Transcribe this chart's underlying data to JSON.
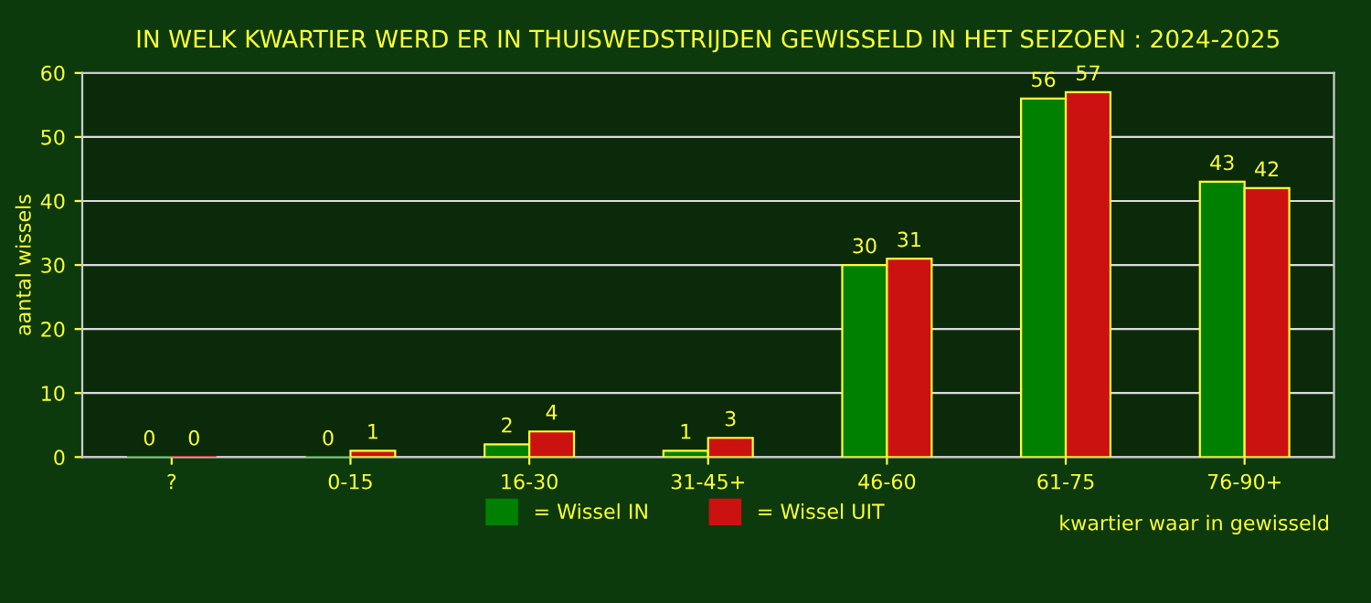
{
  "chart_data": {
    "type": "bar",
    "title": "IN WELK KWARTIER WERD ER IN THUISWEDSTRIJDEN GEWISSELD IN HET SEIZOEN : 2024-2025",
    "xlabel": "kwartier waar in gewisseld",
    "ylabel": "aantal wissels",
    "categories": [
      "?",
      "0-15",
      "16-30",
      "31-45+",
      "46-60",
      "61-75",
      "76-90+"
    ],
    "series": [
      {
        "name": "= Wissel IN",
        "color": "#008000",
        "values": [
          0,
          0,
          2,
          1,
          30,
          56,
          43
        ]
      },
      {
        "name": "= Wissel UIT",
        "color": "#cc1111",
        "values": [
          0,
          1,
          4,
          3,
          31,
          57,
          42
        ]
      }
    ],
    "ylim": [
      0,
      60
    ],
    "yticks": [
      0,
      10,
      20,
      30,
      40,
      50,
      60
    ],
    "grid": "y",
    "legend": "bottom",
    "data_labels": true
  }
}
